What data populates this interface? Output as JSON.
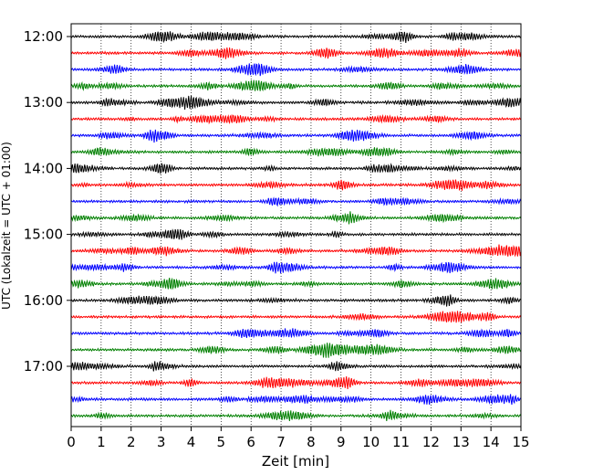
{
  "chart_data": {
    "type": "line",
    "title": "",
    "xlabel": "Zeit  [min]",
    "ylabel": "UTC (Lokalzeit = UTC + 01:00)",
    "xlim": [
      0,
      15
    ],
    "x_ticks": [
      "0",
      "1",
      "2",
      "3",
      "4",
      "5",
      "6",
      "7",
      "8",
      "9",
      "10",
      "11",
      "12",
      "13",
      "14",
      "15"
    ],
    "y_ticks": [
      "12:00",
      "13:00",
      "14:00",
      "15:00",
      "16:00",
      "17:00"
    ],
    "grid": "vertical dotted lines at each minute",
    "legend": "none",
    "trace_interval_minutes": 15,
    "trace_color_cycle": [
      "#000000",
      "#ff0000",
      "#0000ff",
      "#008000"
    ],
    "traces": [
      {
        "start": "12:00",
        "color": "#000000"
      },
      {
        "start": "12:15",
        "color": "#ff0000"
      },
      {
        "start": "12:30",
        "color": "#0000ff"
      },
      {
        "start": "12:45",
        "color": "#008000"
      },
      {
        "start": "13:00",
        "color": "#000000"
      },
      {
        "start": "13:15",
        "color": "#ff0000"
      },
      {
        "start": "13:30",
        "color": "#0000ff"
      },
      {
        "start": "13:45",
        "color": "#008000"
      },
      {
        "start": "14:00",
        "color": "#000000"
      },
      {
        "start": "14:15",
        "color": "#ff0000"
      },
      {
        "start": "14:30",
        "color": "#0000ff"
      },
      {
        "start": "14:45",
        "color": "#008000"
      },
      {
        "start": "15:00",
        "color": "#000000"
      },
      {
        "start": "15:15",
        "color": "#ff0000"
      },
      {
        "start": "15:30",
        "color": "#0000ff"
      },
      {
        "start": "15:45",
        "color": "#008000"
      },
      {
        "start": "16:00",
        "color": "#000000"
      },
      {
        "start": "16:15",
        "color": "#ff0000"
      },
      {
        "start": "16:30",
        "color": "#0000ff"
      },
      {
        "start": "16:45",
        "color": "#008000"
      },
      {
        "start": "17:00",
        "color": "#000000"
      },
      {
        "start": "17:15",
        "color": "#ff0000"
      },
      {
        "start": "17:30",
        "color": "#0000ff"
      },
      {
        "start": "17:45",
        "color": "#008000"
      }
    ]
  }
}
